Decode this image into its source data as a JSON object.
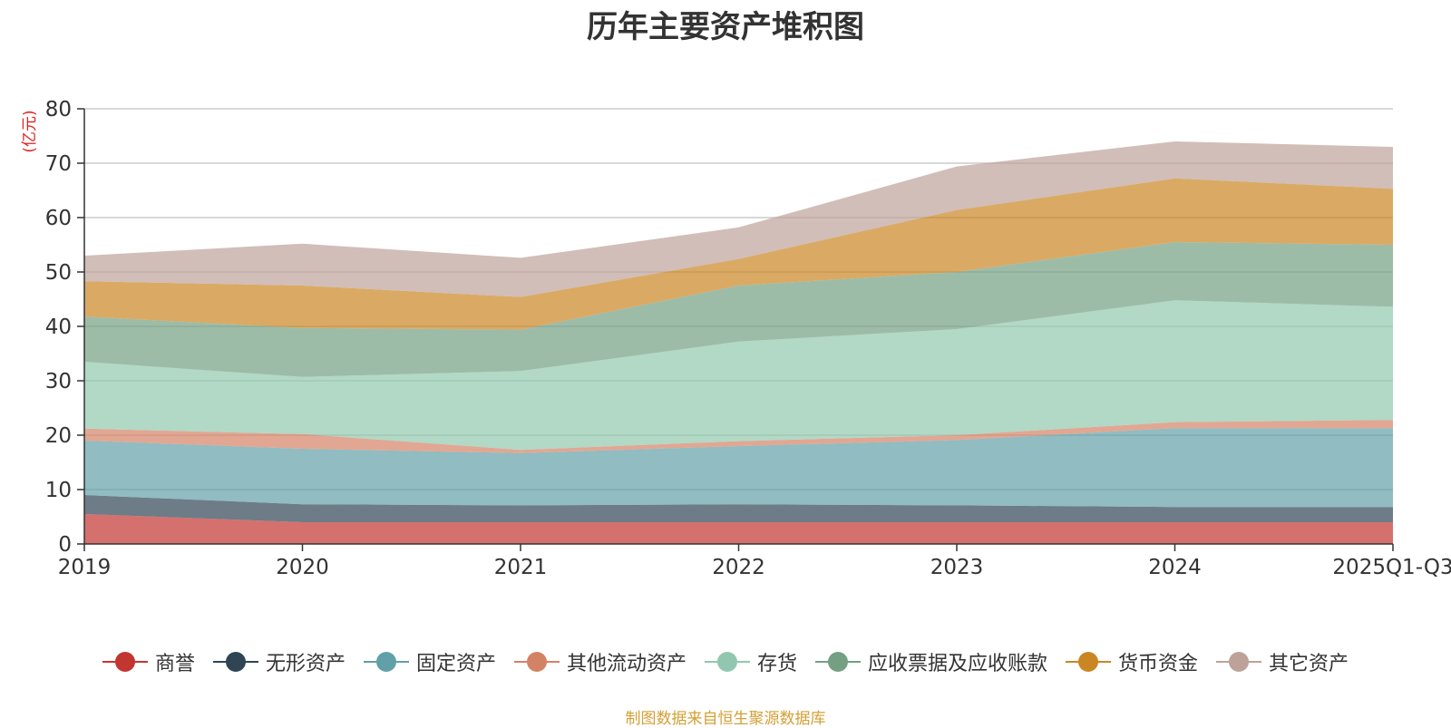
{
  "chart_data": {
    "type": "area",
    "stacked": true,
    "title": "历年主要资产堆积图",
    "ylabel": "(亿元)",
    "xlabel": "",
    "ylim": [
      0,
      80
    ],
    "yticks": [
      0,
      10,
      20,
      30,
      40,
      50,
      60,
      70,
      80
    ],
    "grid": true,
    "legend_position": "bottom",
    "categories": [
      "2019",
      "2020",
      "2021",
      "2022",
      "2023",
      "2024",
      "2025Q1-Q3"
    ],
    "series": [
      {
        "name": "商誉",
        "color": "#c23531",
        "values": [
          5.5,
          4.0,
          4.0,
          4.0,
          4.0,
          4.0,
          4.0
        ]
      },
      {
        "name": "无形资产",
        "color": "#2f4554",
        "values": [
          3.5,
          3.3,
          3.1,
          3.3,
          3.1,
          2.8,
          2.8
        ]
      },
      {
        "name": "固定资产",
        "color": "#61a0a8",
        "values": [
          10.0,
          10.2,
          9.6,
          10.7,
          12.0,
          14.5,
          14.5
        ]
      },
      {
        "name": "其他流动资产",
        "color": "#d48265",
        "values": [
          2.2,
          2.7,
          0.6,
          0.9,
          0.9,
          1.1,
          1.5
        ]
      },
      {
        "name": "存货",
        "color": "#91c7ae",
        "values": [
          12.3,
          10.5,
          14.5,
          18.3,
          19.5,
          22.4,
          20.8
        ]
      },
      {
        "name": "应收票据及应收账款",
        "color": "#749f83",
        "values": [
          8.3,
          9.0,
          7.6,
          10.3,
          10.5,
          10.7,
          11.4
        ]
      },
      {
        "name": "货币资金",
        "color": "#ca8622",
        "values": [
          6.5,
          7.8,
          6.0,
          4.9,
          11.4,
          11.7,
          10.3
        ]
      },
      {
        "name": "其它资产",
        "color": "#bda29a",
        "values": [
          4.7,
          7.7,
          7.2,
          5.8,
          8.0,
          6.8,
          7.7
        ]
      }
    ]
  },
  "source_note": "制图数据来自恒生聚源数据库"
}
